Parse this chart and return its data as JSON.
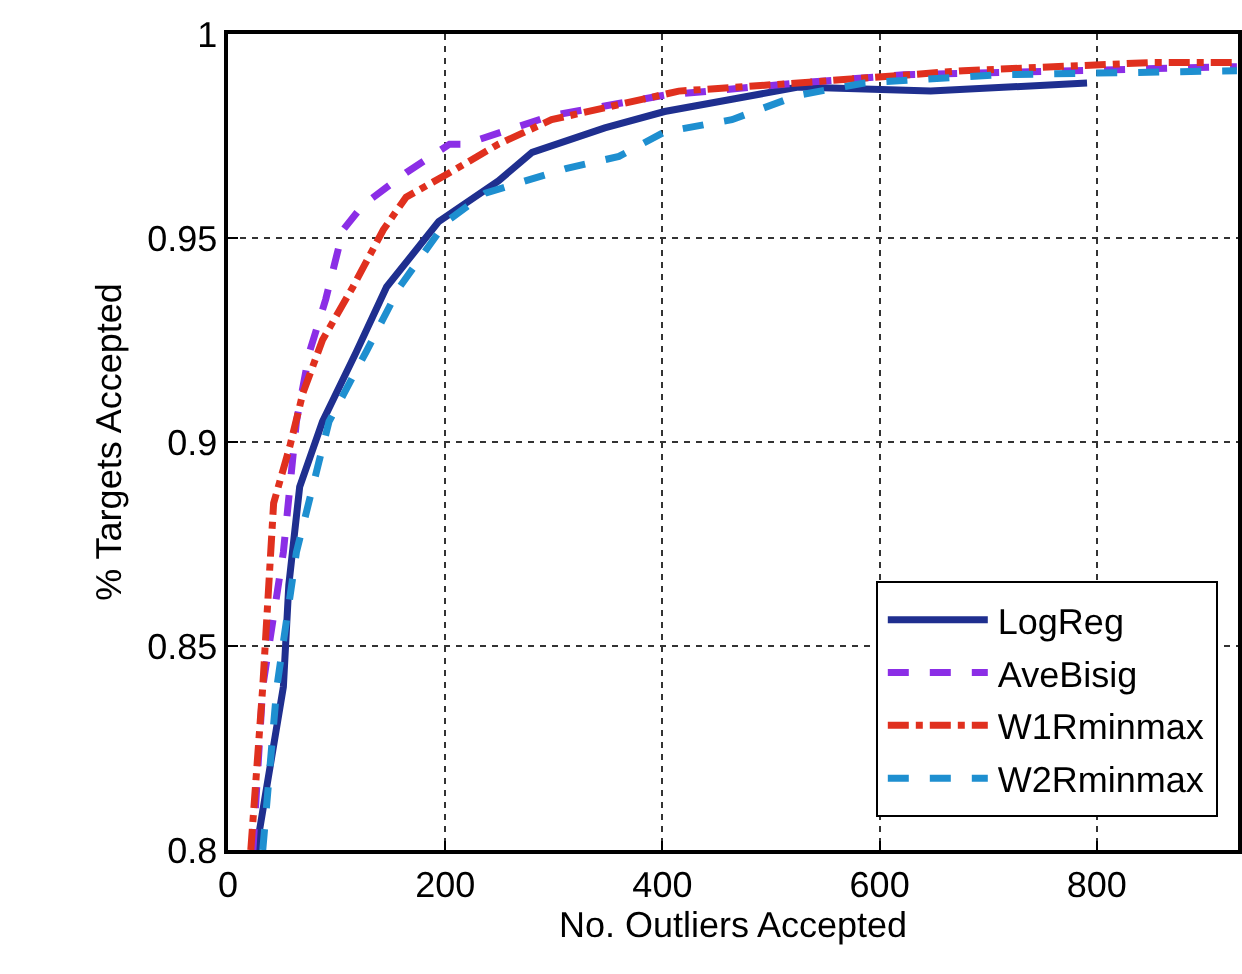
{
  "chart_data": {
    "type": "line",
    "xlabel": "No. Outliers Accepted",
    "ylabel": "% Targets Accepted",
    "xlim": [
      0,
      930
    ],
    "xticks": [
      0,
      200,
      400,
      600,
      800
    ],
    "ylim": [
      0.8,
      1
    ],
    "yticks": [
      0.8,
      0.85,
      0.9,
      0.95,
      1
    ],
    "grid": true,
    "legend": "bottom right",
    "marker": "none",
    "series": [
      {
        "name": "LogReg",
        "color": "#1f2f8f",
        "line_style": "solid",
        "x": [
          26,
          51,
          56,
          66,
          87,
          118,
          146,
          194,
          249,
          280,
          347,
          402,
          464,
          525,
          647,
          791
        ],
        "values": [
          0.8,
          0.84,
          0.865,
          0.889,
          0.905,
          0.922,
          0.938,
          0.954,
          0.964,
          0.971,
          0.977,
          0.981,
          0.984,
          0.987,
          0.986,
          0.988
        ]
      },
      {
        "name": "AveBisig",
        "color": "#8b2ee6",
        "line_style": "dashed",
        "x": [
          23,
          32,
          51,
          63,
          75,
          90,
          106,
          124,
          164,
          204,
          218,
          298,
          402,
          525,
          622,
          929
        ],
        "values": [
          0.8,
          0.84,
          0.873,
          0.905,
          0.922,
          0.935,
          0.952,
          0.958,
          0.966,
          0.973,
          0.973,
          0.98,
          0.985,
          0.988,
          0.99,
          0.992
        ]
      },
      {
        "name": "W1Rminmax",
        "color": "#e0301e",
        "line_style": "dashdot",
        "x": [
          21,
          32,
          42,
          57,
          69,
          87,
          115,
          143,
          164,
          204,
          249,
          298,
          415,
          525,
          677,
          849,
          929
        ],
        "values": [
          0.8,
          0.84,
          0.885,
          0.899,
          0.912,
          0.925,
          0.938,
          0.952,
          0.96,
          0.966,
          0.973,
          0.979,
          0.986,
          0.988,
          0.991,
          0.993,
          0.993
        ]
      },
      {
        "name": "W2Rminmax",
        "color": "#1e8fd0",
        "line_style": "dashed",
        "x": [
          32,
          45,
          63,
          78,
          93,
          127,
          158,
          201,
          237,
          311,
          360,
          402,
          464,
          525,
          586,
          708,
          929
        ],
        "values": [
          0.8,
          0.84,
          0.873,
          0.889,
          0.905,
          0.922,
          0.938,
          0.954,
          0.961,
          0.967,
          0.97,
          0.976,
          0.979,
          0.985,
          0.988,
          0.99,
          0.991
        ]
      }
    ]
  }
}
